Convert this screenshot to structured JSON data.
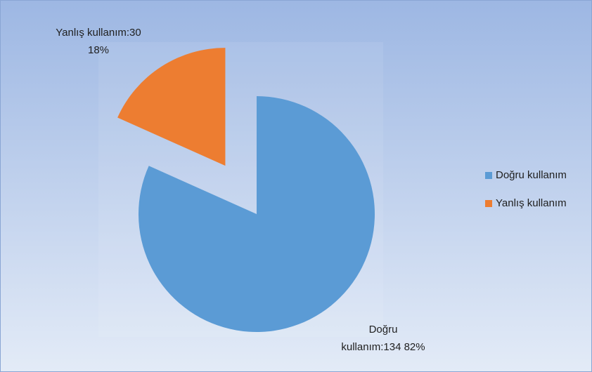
{
  "chart_data": {
    "type": "pie",
    "categories": [
      "Doğru kullanım",
      "Yanlış kullanım"
    ],
    "values": [
      134,
      30
    ],
    "value_labels": [
      [
        "Doğru",
        "kullanım:134 82%"
      ],
      [
        "Yanlış kullanım:30",
        "18%"
      ]
    ],
    "colors": [
      "#5b9bd5",
      "#ed7d31"
    ],
    "explode": [
      false,
      true
    ],
    "legend": "right"
  }
}
